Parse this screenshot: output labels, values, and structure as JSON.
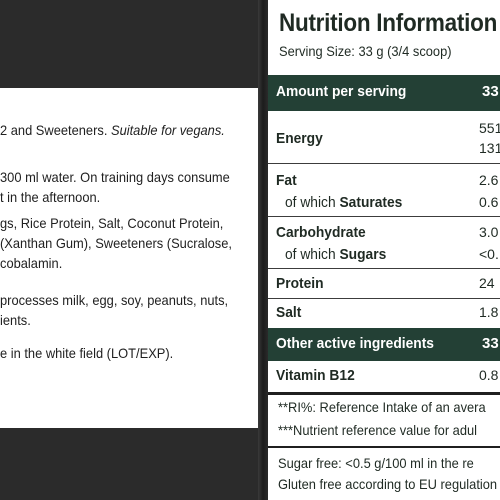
{
  "left_panel": {
    "lines": [
      "2 and Sweeteners.",
      "Suitable for vegans.",
      "300 ml water. On training days consume",
      "t in the afternoon.",
      "gs, Rice Protein, Salt, Coconut Protein,",
      "(Xanthan Gum), Sweeteners (Sucralose,",
      "cobalamin.",
      "processes milk, egg, soy, peanuts, nuts,",
      "ients.",
      "e in the white field (LOT/EXP)."
    ]
  },
  "label": {
    "title": "Nutrition Information",
    "serving": "Serving Size: 33 g (3/4 scoop)",
    "amount_header": "Amount per serving",
    "amount_header_value": "33",
    "rows": {
      "energy": {
        "name": "Energy",
        "value1": "551",
        "value2": "131"
      },
      "fat": {
        "name": "Fat",
        "value": "2.6"
      },
      "saturates": {
        "prefix": "of which",
        "name": "Saturates",
        "value": "0.6"
      },
      "carbohydrate": {
        "name": "Carbohydrate",
        "value": "3.0"
      },
      "sugars": {
        "prefix": "of which",
        "name": "Sugars",
        "value": "<0."
      },
      "protein": {
        "name": "Protein",
        "value": "24"
      },
      "salt": {
        "name": "Salt",
        "value": "1.8"
      }
    },
    "other_header": "Other active ingredients",
    "other_header_value": "33",
    "vitamin": {
      "name": "Vitamin B12",
      "value": "0.8"
    },
    "notes": [
      "**RI%: Reference Intake of an avera",
      "***Nutrient reference value for adul"
    ],
    "footer": [
      "Sugar free: <0.5 g/100 ml in the re",
      "Gluten free according to EU regulation"
    ]
  },
  "colors": {
    "header_green": "#234035",
    "background_dark": "#2b2b2b"
  }
}
